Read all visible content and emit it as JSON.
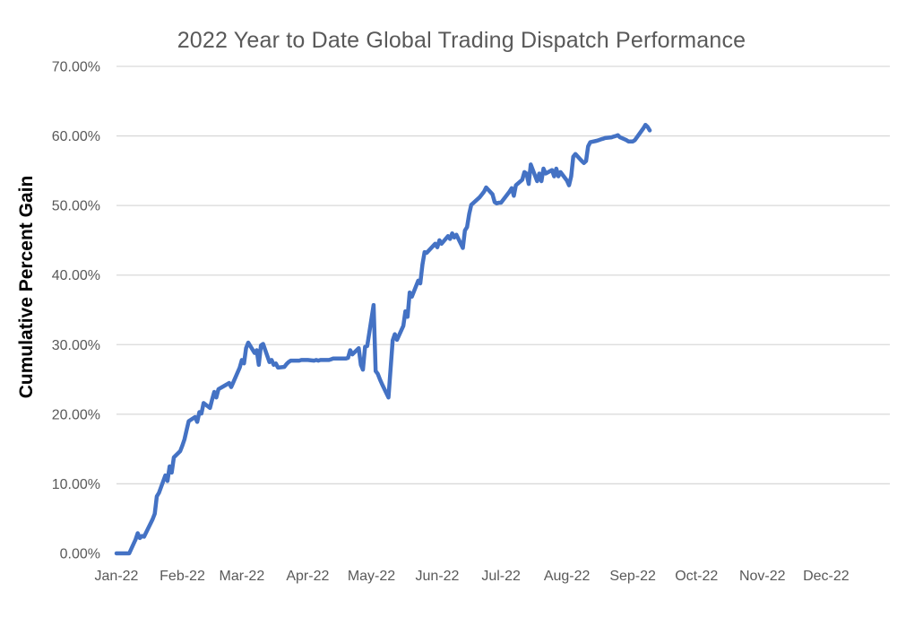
{
  "chart": {
    "title": "2022 Year to Date Global Trading Dispatch Performance",
    "y_axis_title": "Cumulative Percent Gain"
  },
  "colors": {
    "line": "#4472C4",
    "gridline": "#D9D9D9",
    "title_text": "#595959",
    "tick_text": "#595959",
    "y_axis_title_text": "#000000",
    "background": "#FFFFFF"
  },
  "chart_data": {
    "type": "line",
    "title": "2022 Year to Date Global Trading Dispatch Performance",
    "xlabel": "",
    "ylabel": "Cumulative Percent Gain",
    "ylim": [
      0,
      70
    ],
    "x_range_days": 364,
    "grid": "horizontal",
    "legend": "none",
    "y_ticks": [
      {
        "label": "0.00%",
        "value": 0
      },
      {
        "label": "10.00%",
        "value": 10
      },
      {
        "label": "20.00%",
        "value": 20
      },
      {
        "label": "30.00%",
        "value": 30
      },
      {
        "label": "40.00%",
        "value": 40
      },
      {
        "label": "50.00%",
        "value": 50
      },
      {
        "label": "60.00%",
        "value": 60
      },
      {
        "label": "70.00%",
        "value": 70
      }
    ],
    "x_ticks": [
      {
        "label": "Jan-22",
        "day": 0
      },
      {
        "label": "Feb-22",
        "day": 31
      },
      {
        "label": "Mar-22",
        "day": 59
      },
      {
        "label": "Apr-22",
        "day": 90
      },
      {
        "label": "May-22",
        "day": 120
      },
      {
        "label": "Jun-22",
        "day": 151
      },
      {
        "label": "Jul-22",
        "day": 181
      },
      {
        "label": "Aug-22",
        "day": 212
      },
      {
        "label": "Sep-22",
        "day": 243
      },
      {
        "label": "Oct-22",
        "day": 273
      },
      {
        "label": "Nov-22",
        "day": 304
      },
      {
        "label": "Dec-22",
        "day": 334
      }
    ],
    "series": [
      {
        "name": "Cumulative Percent Gain",
        "unit": "%",
        "points": [
          [
            "2022-01-01",
            0.0
          ],
          [
            "2022-01-03",
            0.0
          ],
          [
            "2022-01-04",
            0.0
          ],
          [
            "2022-01-05",
            0.0
          ],
          [
            "2022-01-06",
            0.0
          ],
          [
            "2022-01-07",
            0.0
          ],
          [
            "2022-01-10",
            2.0
          ],
          [
            "2022-01-11",
            2.9
          ],
          [
            "2022-01-12",
            2.2
          ],
          [
            "2022-01-13",
            2.5
          ],
          [
            "2022-01-14",
            2.4
          ],
          [
            "2022-01-18",
            4.9
          ],
          [
            "2022-01-19",
            5.7
          ],
          [
            "2022-01-20",
            8.2
          ],
          [
            "2022-01-21",
            8.7
          ],
          [
            "2022-01-24",
            11.2
          ],
          [
            "2022-01-25",
            10.4
          ],
          [
            "2022-01-26",
            12.5
          ],
          [
            "2022-01-27",
            11.6
          ],
          [
            "2022-01-28",
            13.8
          ],
          [
            "2022-01-31",
            14.7
          ],
          [
            "2022-02-01",
            15.5
          ],
          [
            "2022-02-02",
            16.4
          ],
          [
            "2022-02-03",
            17.7
          ],
          [
            "2022-02-04",
            19.0
          ],
          [
            "2022-02-07",
            19.6
          ],
          [
            "2022-02-08",
            18.9
          ],
          [
            "2022-02-09",
            20.3
          ],
          [
            "2022-02-10",
            20.1
          ],
          [
            "2022-02-11",
            21.6
          ],
          [
            "2022-02-14",
            20.9
          ],
          [
            "2022-02-15",
            22.1
          ],
          [
            "2022-02-16",
            23.2
          ],
          [
            "2022-02-17",
            22.4
          ],
          [
            "2022-02-18",
            23.6
          ],
          [
            "2022-02-22",
            24.3
          ],
          [
            "2022-02-23",
            24.5
          ],
          [
            "2022-02-24",
            23.9
          ],
          [
            "2022-02-25",
            24.6
          ],
          [
            "2022-02-28",
            26.7
          ],
          [
            "2022-03-01",
            27.8
          ],
          [
            "2022-03-02",
            27.3
          ],
          [
            "2022-03-03",
            29.5
          ],
          [
            "2022-03-04",
            30.3
          ],
          [
            "2022-03-07",
            28.8
          ],
          [
            "2022-03-08",
            29.2
          ],
          [
            "2022-03-09",
            27.1
          ],
          [
            "2022-03-10",
            29.9
          ],
          [
            "2022-03-11",
            30.1
          ],
          [
            "2022-03-14",
            27.5
          ],
          [
            "2022-03-15",
            27.8
          ],
          [
            "2022-03-16",
            27.1
          ],
          [
            "2022-03-17",
            27.3
          ],
          [
            "2022-03-18",
            26.7
          ],
          [
            "2022-03-21",
            26.8
          ],
          [
            "2022-03-22",
            27.2
          ],
          [
            "2022-03-23",
            27.5
          ],
          [
            "2022-03-24",
            27.7
          ],
          [
            "2022-03-25",
            27.7
          ],
          [
            "2022-03-28",
            27.7
          ],
          [
            "2022-03-29",
            27.8
          ],
          [
            "2022-03-30",
            27.8
          ],
          [
            "2022-03-31",
            27.8
          ],
          [
            "2022-04-01",
            27.8
          ],
          [
            "2022-04-04",
            27.7
          ],
          [
            "2022-04-05",
            27.8
          ],
          [
            "2022-04-06",
            27.7
          ],
          [
            "2022-04-07",
            27.8
          ],
          [
            "2022-04-08",
            27.8
          ],
          [
            "2022-04-11",
            27.8
          ],
          [
            "2022-04-12",
            27.9
          ],
          [
            "2022-04-13",
            28.0
          ],
          [
            "2022-04-14",
            28.0
          ],
          [
            "2022-04-18",
            28.0
          ],
          [
            "2022-04-19",
            28.0
          ],
          [
            "2022-04-20",
            28.1
          ],
          [
            "2022-04-21",
            29.2
          ],
          [
            "2022-04-22",
            28.6
          ],
          [
            "2022-04-25",
            29.5
          ],
          [
            "2022-04-26",
            27.1
          ],
          [
            "2022-04-27",
            26.4
          ],
          [
            "2022-04-28",
            29.7
          ],
          [
            "2022-04-29",
            29.8
          ],
          [
            "2022-05-02",
            35.7
          ],
          [
            "2022-05-03",
            26.2
          ],
          [
            "2022-05-04",
            25.8
          ],
          [
            "2022-05-05",
            25.0
          ],
          [
            "2022-05-06",
            24.3
          ],
          [
            "2022-05-09",
            22.4
          ],
          [
            "2022-05-10",
            26.4
          ],
          [
            "2022-05-11",
            30.6
          ],
          [
            "2022-05-12",
            31.5
          ],
          [
            "2022-05-13",
            30.7
          ],
          [
            "2022-05-16",
            32.7
          ],
          [
            "2022-05-17",
            34.8
          ],
          [
            "2022-05-18",
            34.0
          ],
          [
            "2022-05-19",
            37.5
          ],
          [
            "2022-05-20",
            36.9
          ],
          [
            "2022-05-23",
            39.2
          ],
          [
            "2022-05-24",
            38.8
          ],
          [
            "2022-05-25",
            41.5
          ],
          [
            "2022-05-26",
            43.3
          ],
          [
            "2022-05-27",
            43.2
          ],
          [
            "2022-05-31",
            44.5
          ],
          [
            "2022-06-01",
            44.0
          ],
          [
            "2022-06-02",
            45.0
          ],
          [
            "2022-06-03",
            44.5
          ],
          [
            "2022-06-06",
            45.6
          ],
          [
            "2022-06-07",
            45.2
          ],
          [
            "2022-06-08",
            46.0
          ],
          [
            "2022-06-09",
            45.4
          ],
          [
            "2022-06-10",
            45.8
          ],
          [
            "2022-06-13",
            43.9
          ],
          [
            "2022-06-14",
            46.4
          ],
          [
            "2022-06-15",
            46.9
          ],
          [
            "2022-06-16",
            48.8
          ],
          [
            "2022-06-17",
            50.1
          ],
          [
            "2022-06-21",
            51.2
          ],
          [
            "2022-06-22",
            51.6
          ],
          [
            "2022-06-23",
            52.0
          ],
          [
            "2022-06-24",
            52.6
          ],
          [
            "2022-06-27",
            51.6
          ],
          [
            "2022-06-28",
            50.5
          ],
          [
            "2022-06-29",
            50.3
          ],
          [
            "2022-06-30",
            50.4
          ],
          [
            "2022-07-01",
            50.4
          ],
          [
            "2022-07-05",
            52.0
          ],
          [
            "2022-07-06",
            52.5
          ],
          [
            "2022-07-07",
            51.4
          ],
          [
            "2022-07-08",
            52.9
          ],
          [
            "2022-07-11",
            53.7
          ],
          [
            "2022-07-12",
            54.8
          ],
          [
            "2022-07-13",
            54.6
          ],
          [
            "2022-07-14",
            53.1
          ],
          [
            "2022-07-15",
            55.9
          ],
          [
            "2022-07-18",
            53.5
          ],
          [
            "2022-07-19",
            54.6
          ],
          [
            "2022-07-20",
            53.5
          ],
          [
            "2022-07-21",
            55.3
          ],
          [
            "2022-07-22",
            54.6
          ],
          [
            "2022-07-25",
            55.1
          ],
          [
            "2022-07-26",
            54.2
          ],
          [
            "2022-07-27",
            55.3
          ],
          [
            "2022-07-28",
            54.2
          ],
          [
            "2022-07-29",
            54.8
          ],
          [
            "2022-08-01",
            53.6
          ],
          [
            "2022-08-02",
            52.9
          ],
          [
            "2022-08-03",
            54.2
          ],
          [
            "2022-08-04",
            57.0
          ],
          [
            "2022-08-05",
            57.4
          ],
          [
            "2022-08-08",
            56.4
          ],
          [
            "2022-08-09",
            56.1
          ],
          [
            "2022-08-10",
            56.4
          ],
          [
            "2022-08-11",
            58.5
          ],
          [
            "2022-08-12",
            59.1
          ],
          [
            "2022-08-15",
            59.3
          ],
          [
            "2022-08-16",
            59.4
          ],
          [
            "2022-08-17",
            59.5
          ],
          [
            "2022-08-18",
            59.6
          ],
          [
            "2022-08-19",
            59.7
          ],
          [
            "2022-08-22",
            59.8
          ],
          [
            "2022-08-23",
            59.9
          ],
          [
            "2022-08-24",
            60.0
          ],
          [
            "2022-08-25",
            60.1
          ],
          [
            "2022-08-26",
            59.8
          ],
          [
            "2022-08-29",
            59.4
          ],
          [
            "2022-08-30",
            59.2
          ],
          [
            "2022-08-31",
            59.2
          ],
          [
            "2022-09-01",
            59.2
          ],
          [
            "2022-09-02",
            59.4
          ],
          [
            "2022-09-06",
            61.1
          ],
          [
            "2022-09-07",
            61.6
          ],
          [
            "2022-09-08",
            61.3
          ],
          [
            "2022-09-09",
            60.8
          ]
        ]
      }
    ]
  }
}
